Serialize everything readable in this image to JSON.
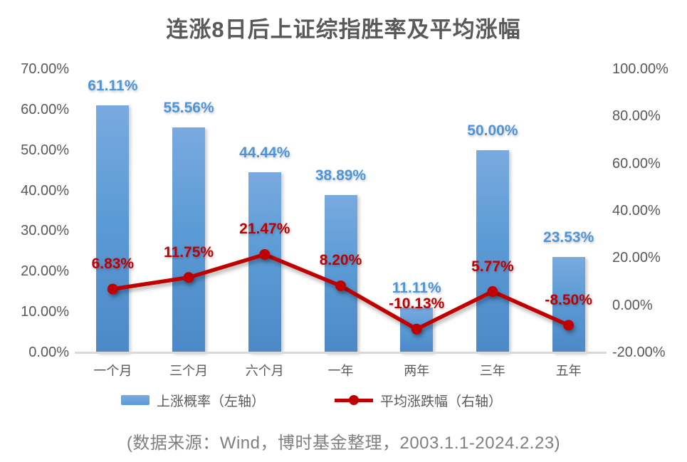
{
  "footer": {
    "source": "(数据来源：Wind，博时基金整理，2003.1.1-2024.2.23)"
  },
  "legend": {
    "items": [
      {
        "label": "上涨概率（左轴）",
        "swatch": "bar",
        "color": "#5B9BD5"
      },
      {
        "label": "平均涨跌幅（右轴）",
        "swatch": "line",
        "color": "#C00000"
      }
    ]
  },
  "chart_data": {
    "type": "combo",
    "title": "连涨8日后上证综指胜率及平均涨幅",
    "categories": [
      "一个月",
      "三个月",
      "六个月",
      "一年",
      "两年",
      "三年",
      "五年"
    ],
    "series": [
      {
        "name": "上涨概率（左轴）",
        "type": "bar",
        "axis": "left",
        "color": "#5B9BD5",
        "label_color": "#4E95D8",
        "values": [
          61.11,
          55.56,
          44.44,
          38.89,
          11.11,
          50.0,
          23.53
        ],
        "labels": [
          "61.11%",
          "55.56%",
          "44.44%",
          "38.89%",
          "11.11%",
          "50.00%",
          "23.53%"
        ]
      },
      {
        "name": "平均涨跌幅（右轴）",
        "type": "line",
        "axis": "right",
        "color": "#C00000",
        "values": [
          6.83,
          11.75,
          21.47,
          8.2,
          -10.13,
          5.77,
          -8.5
        ],
        "labels": [
          "6.83%",
          "11.75%",
          "21.47%",
          "8.20%",
          "-10.13%",
          "5.77%",
          "-8.50%"
        ]
      }
    ],
    "left_axis": {
      "min": 0,
      "max": 70,
      "ticks": [
        "70.00%",
        "60.00%",
        "50.00%",
        "40.00%",
        "30.00%",
        "20.00%",
        "10.00%",
        "0.00%"
      ]
    },
    "right_axis": {
      "min": -20,
      "max": 100,
      "ticks": [
        "100.00%",
        "80.00%",
        "60.00%",
        "40.00%",
        "20.00%",
        "0.00%",
        "-20.00%"
      ]
    },
    "grid": false,
    "legend_position": "bottom"
  }
}
